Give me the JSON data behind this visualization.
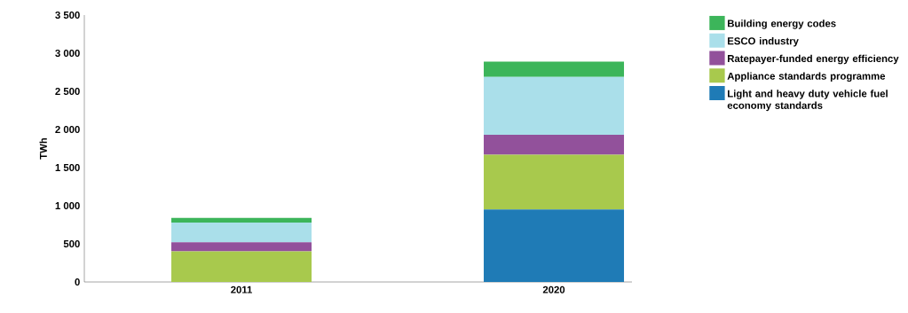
{
  "chart_data": {
    "type": "bar",
    "stacked": true,
    "ylabel": "TWh",
    "categories": [
      "2011",
      "2020"
    ],
    "series": [
      {
        "name": "Light and heavy duty vehicle fuel economy standards",
        "color": "#1f7bb6",
        "values": [
          null,
          950
        ]
      },
      {
        "name": "Appliance standards programme",
        "color": "#a8c94d",
        "values": [
          400,
          720
        ]
      },
      {
        "name": "Ratepayer-funded energy efficiency",
        "color": "#92519b",
        "values": [
          120,
          260
        ]
      },
      {
        "name": "ESCO industry",
        "color": "#aadfea",
        "values": [
          260,
          760
        ]
      },
      {
        "name": "Building energy codes",
        "color": "#3cb55a",
        "values": [
          60,
          200
        ]
      }
    ],
    "ylim": [
      0,
      3500
    ],
    "yticks": [
      0,
      500,
      {
        "value": 1000,
        "label": "1 000"
      },
      {
        "value": 1500,
        "label": "1 500"
      },
      {
        "value": 2000,
        "label": "2 000"
      },
      {
        "value": 2500,
        "label": "2 500"
      },
      {
        "value": 3000,
        "label": "3 000"
      },
      {
        "value": 3500,
        "label": "3 500"
      }
    ],
    "grid": false,
    "legend": "right"
  }
}
